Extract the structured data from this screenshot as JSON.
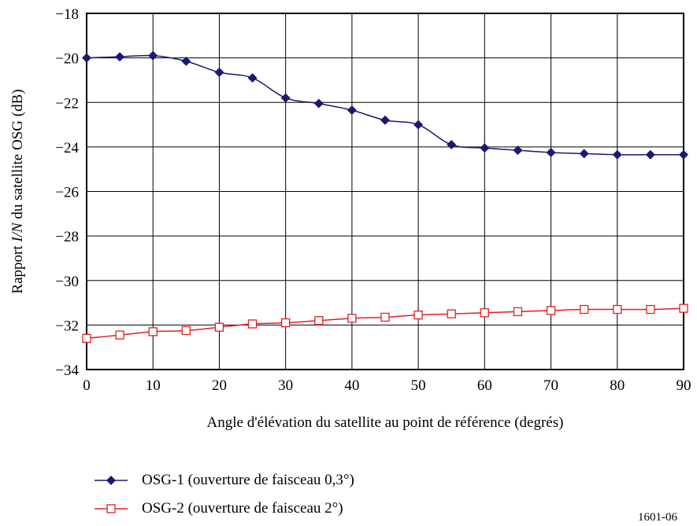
{
  "chart_data": {
    "type": "line",
    "xlabel": "Angle d'élévation du satellite au point de référence (degrés)",
    "ylabel_parts": [
      "Rapport ",
      "I/N",
      " du satellite OSG (dB)"
    ],
    "xlim": [
      0,
      90
    ],
    "ylim": [
      -34,
      -18
    ],
    "x_ticks": [
      "0",
      "10",
      "20",
      "30",
      "40",
      "50",
      "60",
      "70",
      "80",
      "90"
    ],
    "y_ticks": [
      "−18",
      "−20",
      "−22",
      "−24",
      "−26",
      "−28",
      "−30",
      "−32",
      "−34"
    ],
    "grid": true,
    "legend_position": "bottom-left",
    "x": [
      0,
      5,
      10,
      15,
      20,
      25,
      30,
      35,
      40,
      45,
      50,
      55,
      60,
      65,
      70,
      75,
      80,
      85,
      90
    ],
    "series": [
      {
        "name": "OSG-1 (ouverture de faisceau 0,3°)",
        "color": "#1a1a6e",
        "marker": "filled-diamond",
        "values": [
          -20.0,
          -19.95,
          -19.9,
          -20.15,
          -20.65,
          -20.9,
          -21.8,
          -22.05,
          -22.35,
          -22.8,
          -23.0,
          -23.9,
          -24.05,
          -24.15,
          -24.25,
          -24.3,
          -24.35,
          -24.35,
          -24.35
        ]
      },
      {
        "name": "OSG-2 (ouverture de faisceau 2°)",
        "color": "#e02020",
        "marker": "open-square",
        "values": [
          -32.6,
          -32.45,
          -32.3,
          -32.25,
          -32.1,
          -31.95,
          -31.9,
          -31.8,
          -31.7,
          -31.65,
          -31.55,
          -31.5,
          -31.45,
          -31.4,
          -31.35,
          -31.3,
          -31.3,
          -31.3,
          -31.25
        ]
      }
    ]
  },
  "figure_id": "1601-06"
}
